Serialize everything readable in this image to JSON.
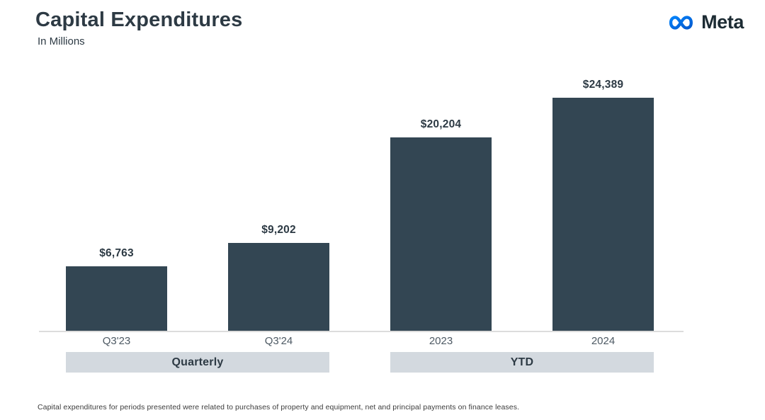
{
  "page": {
    "title": "Capital Expenditures",
    "subtitle": "In Millions",
    "footnote": "Capital expenditures for periods presented were related to purchases of property and equipment, net and principal payments on finance leases."
  },
  "logo": {
    "brand": "Meta",
    "icon": "meta-infinity-icon"
  },
  "colors": {
    "bar": "#334653",
    "band_background": "#d3d9df",
    "title_text": "#2d3a44",
    "category_text": "#4e5a64",
    "axis_line": "#dcdcdc",
    "logo_blue_start": "#0082fb",
    "logo_blue_end": "#0059ce",
    "logo_text": "#1c2b33"
  },
  "chart_data": {
    "type": "bar",
    "title": "Capital Expenditures",
    "subtitle": "In Millions",
    "unit": "USD millions",
    "ylim": [
      0,
      24389
    ],
    "grid": false,
    "legend": "none",
    "groups": [
      {
        "label": "Quarterly",
        "bars": [
          {
            "category": "Q3'23",
            "value": 6763,
            "value_label": "$6,763"
          },
          {
            "category": "Q3'24",
            "value": 9202,
            "value_label": "$9,202"
          }
        ]
      },
      {
        "label": "YTD",
        "bars": [
          {
            "category": "2023",
            "value": 20204,
            "value_label": "$20,204"
          },
          {
            "category": "2024",
            "value": 24389,
            "value_label": "$24,389"
          }
        ]
      }
    ]
  }
}
